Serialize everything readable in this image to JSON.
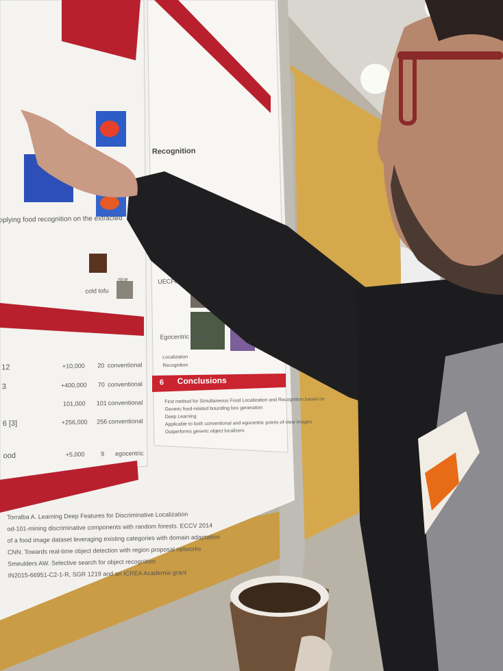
{
  "poster": {
    "recognition_heading": "Recognition",
    "datasets": [
      "UECFood 256",
      "Egocentric Food"
    ],
    "checks": [
      "Localization",
      "Recognition"
    ],
    "food_labels": [
      "cold tofu",
      "rice"
    ],
    "applying_caption": "pplying food recognition on the extracted",
    "section_number": "6",
    "section_heading": "Conclusions",
    "conclusions": [
      "First method for Simultaneous Food Localization and Recognition based on",
      "Generic food-related bounding box generation",
      "Deep Learning",
      "Applicable to both conventional and egocentric points-of-view images",
      "Outperforms generic object localizers"
    ],
    "table": {
      "rows": [
        [
          "12",
          "+10,000",
          "20",
          "conventional"
        ],
        [
          "3",
          "+400,000",
          "70",
          "conventional"
        ],
        [
          "",
          "101,000",
          "101",
          "conventional"
        ],
        [
          "6 [3]",
          "+256,000",
          "256",
          "conventional"
        ],
        [
          "ood",
          "+5,000",
          "9",
          "egocentric"
        ]
      ]
    },
    "references": [
      "Torralba A. Learning Deep Features for Discriminative Localization",
      "od-101-mining discriminative components with random forests. ECCV 2014",
      "of a food image dataset leveraging existing categories with domain adaptation",
      "CNN. Towards real-time object detection with region proposal networks",
      "Smeulders AW. Selective search for object recognition",
      "IN2015-66951-C2-1-R, SGR 1219 and an ICREA Academia grant"
    ]
  }
}
